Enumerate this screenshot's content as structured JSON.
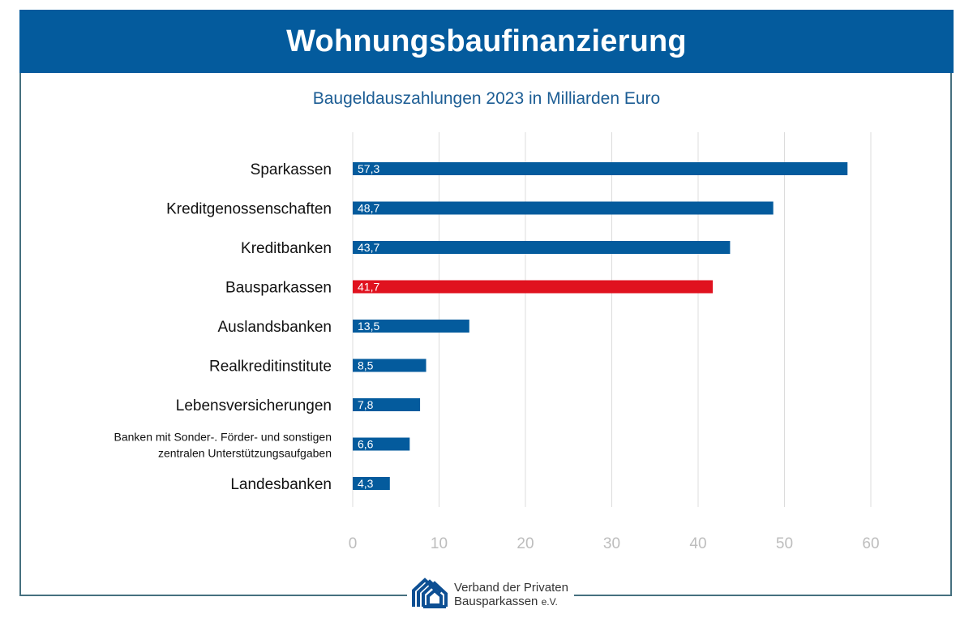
{
  "header": {
    "title": "Wohnungsbaufinanzierung"
  },
  "colors": {
    "header_bg": "#045b9d",
    "bar_default": "#045b9d",
    "bar_highlight": "#e0121f",
    "frame": "#46707f",
    "subtitle": "#1c5d94"
  },
  "footer": {
    "logo_icon": "houses-logo-icon",
    "org_line1": "Verband der Privaten",
    "org_line2": "Bausparkassen",
    "org_suffix": "e.V."
  },
  "chart_data": {
    "type": "bar",
    "orientation": "horizontal",
    "title": "Wohnungsbaufinanzierung",
    "subtitle": "Baugeldauszahlungen 2023 in Milliarden Euro",
    "xlabel": "",
    "ylabel": "",
    "xlim": [
      0,
      60
    ],
    "xticks": [
      0,
      10,
      20,
      30,
      40,
      50,
      60
    ],
    "grid": true,
    "categories": [
      "Sparkassen",
      "Kreditgenossenschaften",
      "Kreditbanken",
      "Bausparkassen",
      "Auslandsbanken",
      "Realkreditinstitute",
      "Lebensversicherungen",
      "Banken mit Sonder-. Förder- und sonstigen zentralen Unterstützungsaufgaben",
      "Landesbanken"
    ],
    "category_lines": [
      [
        "Sparkassen"
      ],
      [
        "Kreditgenossenschaften"
      ],
      [
        "Kreditbanken"
      ],
      [
        "Bausparkassen"
      ],
      [
        "Auslandsbanken"
      ],
      [
        "Realkreditinstitute"
      ],
      [
        "Lebensversicherungen"
      ],
      [
        "Banken mit Sonder-. Förder- und sonstigen",
        "zentralen Unterstützungsaufgaben"
      ],
      [
        "Landesbanken"
      ]
    ],
    "values": [
      57.3,
      48.7,
      43.7,
      41.7,
      13.5,
      8.5,
      7.8,
      6.6,
      4.3
    ],
    "value_labels": [
      "57,3",
      "48,7",
      "43,7",
      "41,7",
      "13,5",
      "8,5",
      "7,8",
      "6,6",
      "4,3"
    ],
    "highlight": "Bausparkassen"
  }
}
